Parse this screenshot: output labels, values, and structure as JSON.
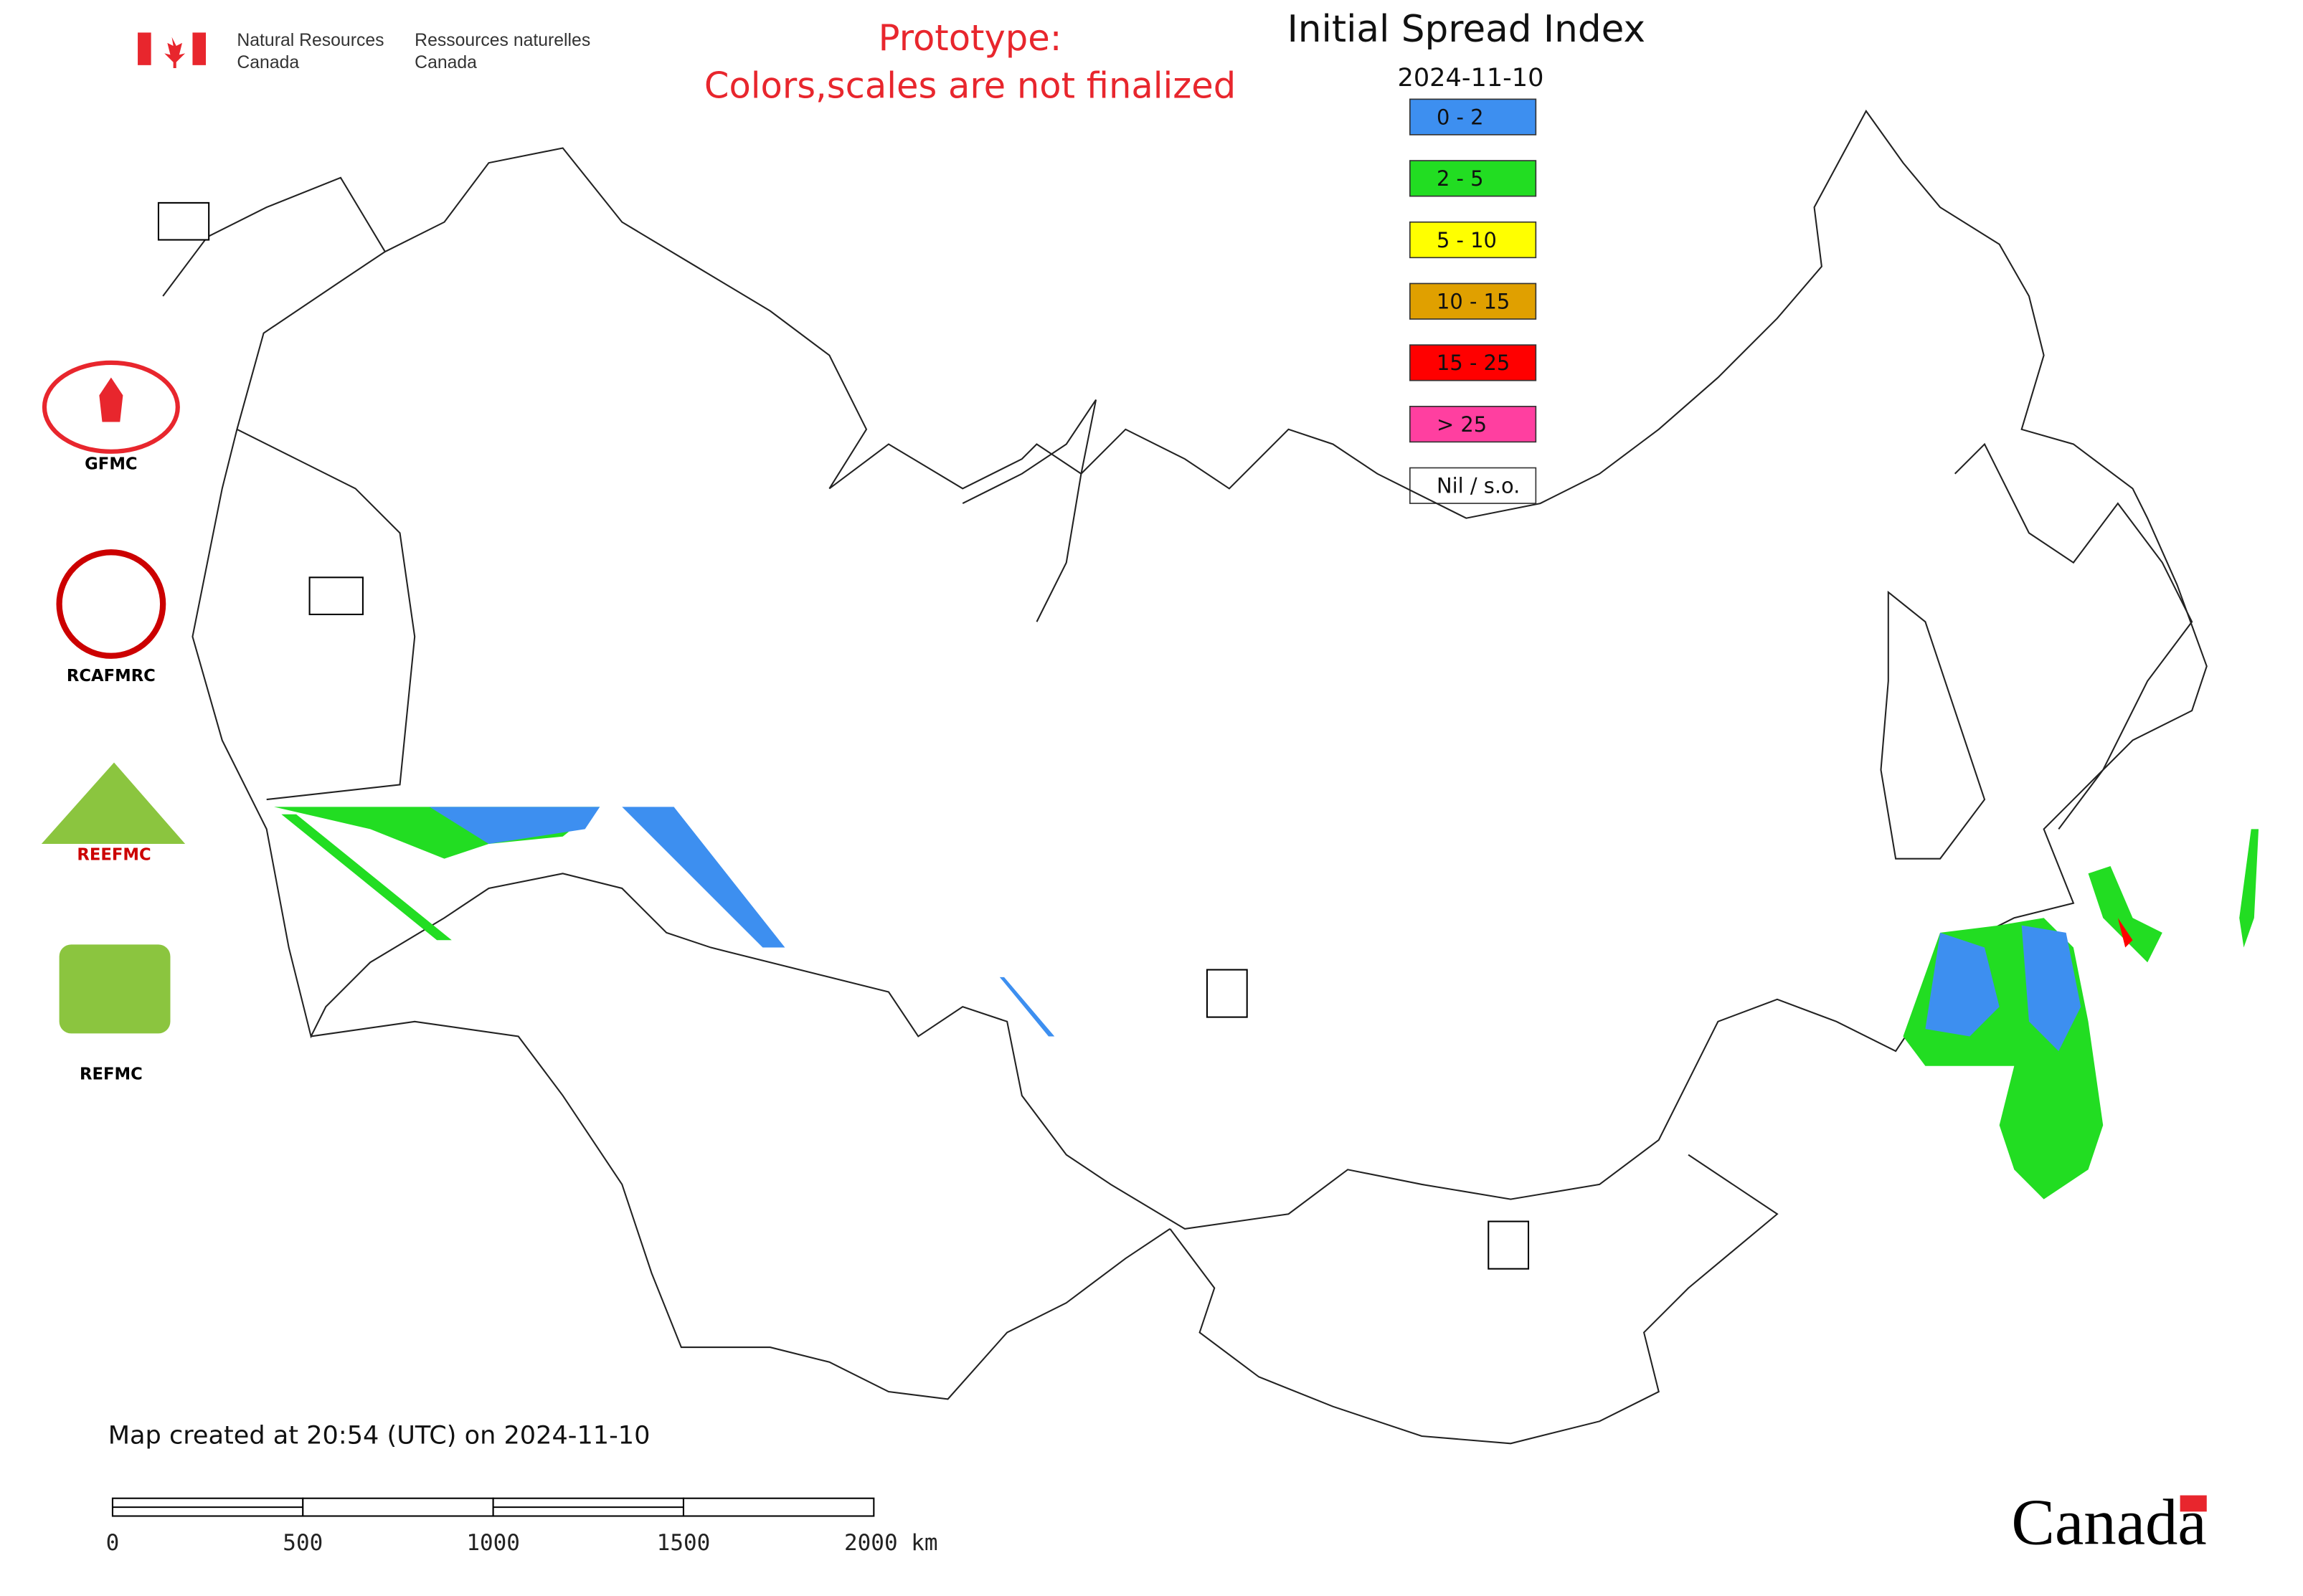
{
  "header": {
    "agency_en_1": "Natural Resources",
    "agency_en_2": "Canada",
    "agency_fr_1": "Ressources naturelles",
    "agency_fr_2": "Canada"
  },
  "notice": [
    "Prototype:",
    "Colors,scales are not finalized"
  ],
  "title": "Initial Spread Index",
  "date": "2024-11-10",
  "legend": [
    {
      "label": "0 - 2",
      "color": "#3d8ff0"
    },
    {
      "label": "2 - 5",
      "color": "#22dd22"
    },
    {
      "label": "5 - 10",
      "color": "#ffff00"
    },
    {
      "label": "10 - 15",
      "color": "#e0a000"
    },
    {
      "label": "15 - 25",
      "color": "#ff0000"
    },
    {
      "label": "> 25",
      "color": "#ff3fa0"
    },
    {
      "label": "Nil / s.o.",
      "color": "#ffffff"
    }
  ],
  "logos": [
    "GFMC",
    "RCAFMRC",
    "REEFMC",
    "REFMC"
  ],
  "footer": "Map created at 20:54 (UTC) on 2024-11-10",
  "scale_bar": [
    "0",
    "500",
    "1000",
    "1500",
    "2000 km"
  ],
  "wordmark": "Canada"
}
